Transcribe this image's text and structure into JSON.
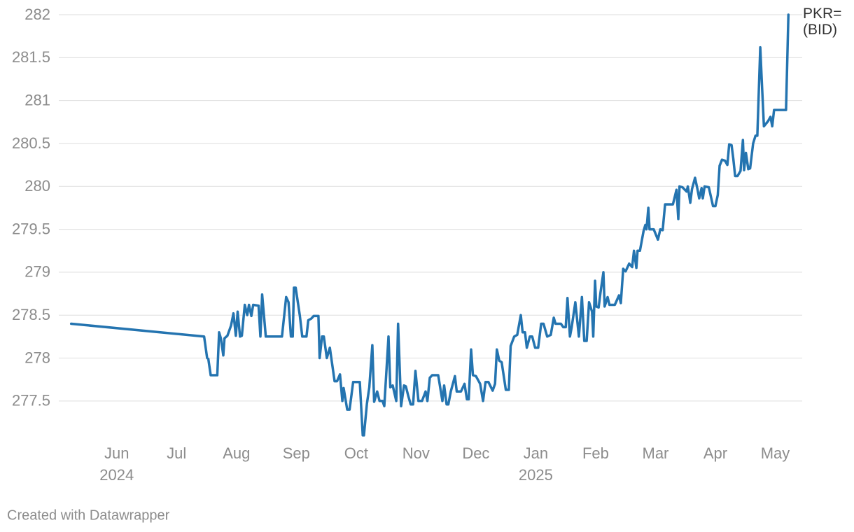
{
  "chart_data": {
    "type": "line",
    "credit": "Created with Datawrapper",
    "x": [
      5.24,
      7.46,
      7.51,
      7.53,
      7.57,
      7.68,
      7.71,
      7.74,
      7.78,
      7.8,
      7.85,
      7.91,
      7.95,
      7.99,
      8.02,
      8.06,
      8.09,
      8.14,
      8.18,
      8.21,
      8.25,
      8.28,
      8.37,
      8.4,
      8.43,
      8.49,
      8.76,
      8.83,
      8.87,
      8.91,
      8.94,
      8.96,
      8.99,
      9.06,
      9.1,
      9.17,
      9.2,
      9.25,
      9.29,
      9.37,
      9.39,
      9.43,
      9.46,
      9.51,
      9.56,
      9.64,
      9.68,
      9.73,
      9.77,
      9.79,
      9.85,
      9.89,
      9.95,
      10.06,
      10.11,
      10.13,
      10.18,
      10.22,
      10.27,
      10.3,
      10.35,
      10.39,
      10.44,
      10.47,
      10.54,
      10.57,
      10.61,
      10.67,
      10.7,
      10.75,
      10.8,
      10.83,
      10.87,
      10.91,
      10.95,
      10.99,
      11.04,
      11.1,
      11.16,
      11.19,
      11.23,
      11.27,
      11.37,
      11.44,
      11.47,
      11.51,
      11.54,
      11.58,
      11.65,
      11.68,
      11.75,
      11.81,
      11.85,
      11.88,
      11.92,
      11.95,
      12.0,
      12.07,
      12.12,
      12.16,
      12.21,
      12.28,
      12.32,
      12.35,
      12.39,
      12.43,
      12.5,
      12.55,
      12.58,
      12.64,
      12.69,
      12.75,
      12.78,
      12.82,
      12.85,
      12.9,
      12.94,
      12.99,
      13.04,
      13.09,
      13.13,
      13.19,
      13.25,
      13.3,
      13.33,
      13.42,
      13.46,
      13.5,
      13.53,
      13.57,
      13.6,
      13.66,
      13.72,
      13.77,
      13.81,
      13.85,
      13.89,
      13.94,
      13.96,
      13.99,
      14.01,
      14.05,
      14.08,
      14.13,
      14.15,
      14.2,
      14.23,
      14.32,
      14.39,
      14.42,
      14.46,
      14.5,
      14.56,
      14.61,
      14.64,
      14.68,
      14.7,
      14.74,
      14.8,
      14.83,
      14.85,
      14.88,
      14.9,
      14.97,
      15.04,
      15.08,
      15.12,
      15.16,
      15.29,
      15.35,
      15.38,
      15.4,
      15.45,
      15.52,
      15.54,
      15.58,
      15.61,
      15.66,
      15.7,
      15.73,
      15.77,
      15.79,
      15.82,
      15.89,
      15.96,
      16.0,
      16.04,
      16.07,
      16.11,
      16.16,
      16.2,
      16.23,
      16.27,
      16.3,
      16.33,
      16.37,
      16.42,
      16.46,
      16.48,
      16.51,
      16.55,
      16.58,
      16.63,
      16.67,
      16.7,
      16.75,
      16.77,
      16.81,
      16.88,
      16.92,
      16.95,
      16.98,
      17.18,
      17.22
    ],
    "series": [
      {
        "name": "PKR= (BID)",
        "color": "#2474b0",
        "values": [
          278.4,
          278.25,
          278.0,
          277.99,
          277.8,
          277.8,
          278.3,
          278.23,
          278.03,
          278.23,
          278.26,
          278.38,
          278.52,
          278.26,
          278.54,
          278.25,
          278.26,
          278.62,
          278.5,
          278.62,
          278.49,
          278.62,
          278.61,
          278.25,
          278.74,
          278.25,
          278.25,
          278.71,
          278.65,
          278.25,
          278.25,
          278.82,
          278.82,
          278.49,
          278.25,
          278.25,
          278.44,
          278.46,
          278.49,
          278.49,
          278.0,
          278.25,
          278.25,
          278.0,
          278.12,
          277.73,
          277.73,
          277.81,
          277.5,
          277.65,
          277.4,
          277.4,
          277.72,
          277.72,
          277.1,
          277.1,
          277.47,
          277.66,
          278.15,
          277.49,
          277.61,
          277.5,
          277.5,
          277.44,
          278.25,
          277.66,
          277.68,
          277.5,
          278.4,
          277.44,
          277.68,
          277.67,
          277.56,
          277.46,
          277.46,
          277.85,
          277.5,
          277.5,
          277.61,
          277.5,
          277.77,
          277.8,
          277.8,
          277.5,
          277.68,
          277.46,
          277.46,
          277.61,
          277.79,
          277.61,
          277.61,
          277.7,
          277.52,
          277.52,
          278.1,
          277.8,
          277.79,
          277.7,
          277.5,
          277.72,
          277.72,
          277.62,
          277.7,
          278.1,
          277.97,
          277.95,
          277.63,
          277.63,
          278.14,
          278.25,
          278.27,
          278.5,
          278.3,
          278.3,
          278.12,
          278.25,
          278.25,
          278.12,
          278.12,
          278.4,
          278.4,
          278.25,
          278.27,
          278.47,
          278.4,
          278.4,
          278.36,
          278.36,
          278.7,
          278.25,
          278.36,
          278.65,
          278.25,
          278.71,
          278.2,
          278.2,
          278.65,
          278.54,
          278.25,
          278.9,
          278.6,
          278.59,
          278.76,
          279.0,
          278.6,
          278.71,
          278.62,
          278.62,
          278.73,
          278.64,
          279.04,
          279.01,
          279.1,
          279.06,
          279.25,
          279.05,
          279.25,
          279.25,
          279.48,
          279.55,
          279.5,
          279.75,
          279.5,
          279.5,
          279.38,
          279.5,
          279.49,
          279.79,
          279.79,
          279.96,
          279.62,
          280.0,
          279.99,
          279.94,
          280.0,
          279.81,
          279.97,
          280.1,
          279.97,
          279.86,
          279.98,
          279.86,
          280.0,
          279.99,
          279.77,
          279.77,
          279.9,
          280.24,
          280.31,
          280.3,
          280.25,
          280.49,
          280.48,
          280.32,
          280.12,
          280.12,
          280.18,
          280.54,
          280.19,
          280.39,
          280.2,
          280.21,
          280.5,
          280.59,
          280.59,
          281.62,
          281.31,
          280.7,
          280.76,
          280.81,
          280.7,
          280.89,
          280.89,
          282.0
        ]
      }
    ],
    "xlim": [
      5.22,
      17.45
    ],
    "xticks": [
      {
        "value": 6,
        "label": "Jun"
      },
      {
        "value": 7,
        "label": "Jul"
      },
      {
        "value": 8,
        "label": "Aug"
      },
      {
        "value": 9,
        "label": "Sep"
      },
      {
        "value": 10,
        "label": "Oct"
      },
      {
        "value": 11,
        "label": "Nov"
      },
      {
        "value": 12,
        "label": "Dec"
      },
      {
        "value": 13,
        "label": "Jan"
      },
      {
        "value": 14,
        "label": "Feb"
      },
      {
        "value": 15,
        "label": "Mar"
      },
      {
        "value": 16,
        "label": "Apr"
      },
      {
        "value": 17,
        "label": "May"
      }
    ],
    "x_year_labels": [
      {
        "value": 6,
        "label": "2024"
      },
      {
        "value": 13,
        "label": "2025"
      }
    ],
    "ylim": [
      277.05,
      282
    ],
    "yticks": [
      277.5,
      278,
      278.5,
      279,
      279.5,
      280,
      280.5,
      281,
      281.5,
      282
    ],
    "grid": true
  }
}
